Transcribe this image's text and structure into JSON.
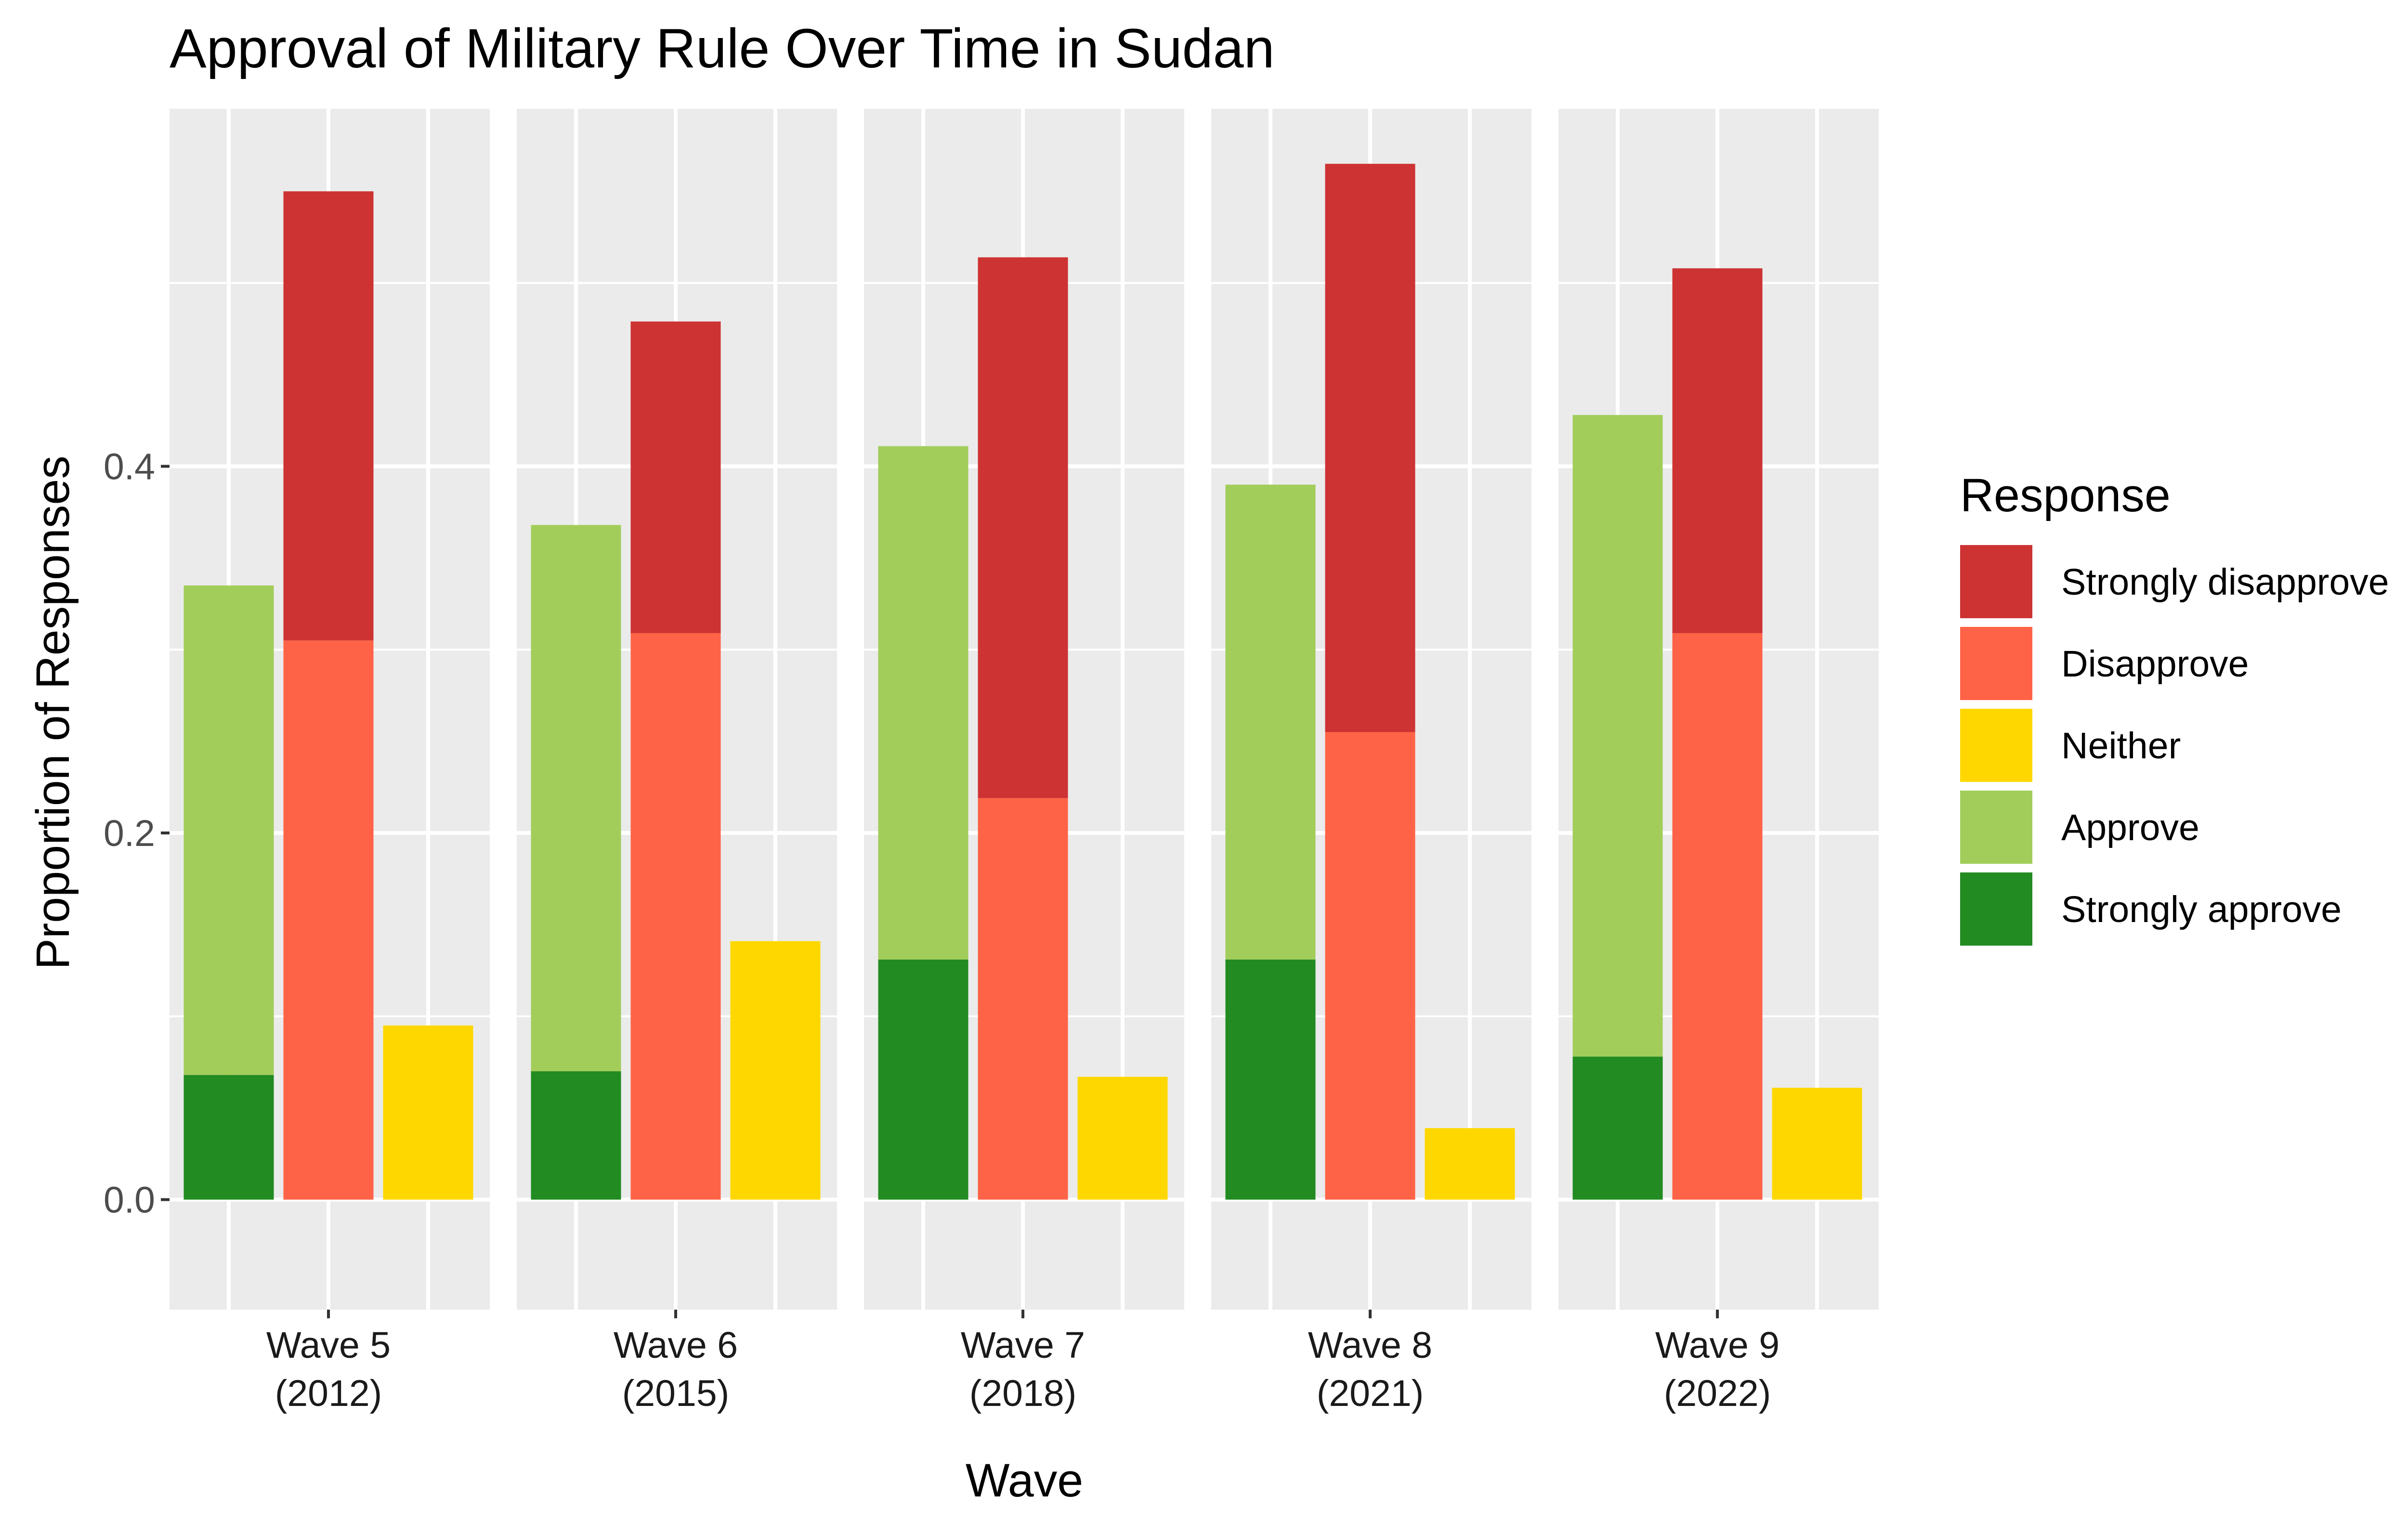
{
  "chart_data": {
    "type": "bar",
    "title": "Approval of Military Rule Over Time in Sudan",
    "xlabel": "Wave",
    "ylabel": "Proportion of Responses",
    "ylim": [
      -0.06,
      0.595
    ],
    "yticks": [
      0.0,
      0.2,
      0.4
    ],
    "ytick_labels": [
      "0.0",
      "0.2",
      "0.4"
    ],
    "grid": true,
    "legend": {
      "title": "Response",
      "placement": "right",
      "entries": [
        {
          "label": "Strongly disapprove",
          "color": "#CD3333"
        },
        {
          "label": "Disapprove",
          "color": "#FF6347"
        },
        {
          "label": "Neither",
          "color": "#FFD700"
        },
        {
          "label": "Approve",
          "color": "#A2CD5A"
        },
        {
          "label": "Strongly approve",
          "color": "#228B22"
        }
      ]
    },
    "bar_groups": [
      "Approve",
      "Disapprove",
      "Neither"
    ],
    "facets": [
      {
        "label_line1": "Wave 5",
        "label_line2": "(2012)",
        "strongly_approve": 0.068,
        "approve": 0.267,
        "disapprove": 0.305,
        "strongly_disapprove": 0.245,
        "neither": 0.095
      },
      {
        "label_line1": "Wave 6",
        "label_line2": "(2015)",
        "strongly_approve": 0.07,
        "approve": 0.298,
        "disapprove": 0.309,
        "strongly_disapprove": 0.17,
        "neither": 0.141
      },
      {
        "label_line1": "Wave 7",
        "label_line2": "(2018)",
        "strongly_approve": 0.131,
        "approve": 0.28,
        "disapprove": 0.219,
        "strongly_disapprove": 0.295,
        "neither": 0.067
      },
      {
        "label_line1": "Wave 8",
        "label_line2": "(2021)",
        "strongly_approve": 0.131,
        "approve": 0.259,
        "disapprove": 0.255,
        "strongly_disapprove": 0.31,
        "neither": 0.039
      },
      {
        "label_line1": "Wave 9",
        "label_line2": "(2022)",
        "strongly_approve": 0.078,
        "approve": 0.35,
        "disapprove": 0.309,
        "strongly_disapprove": 0.199,
        "neither": 0.061
      }
    ]
  }
}
